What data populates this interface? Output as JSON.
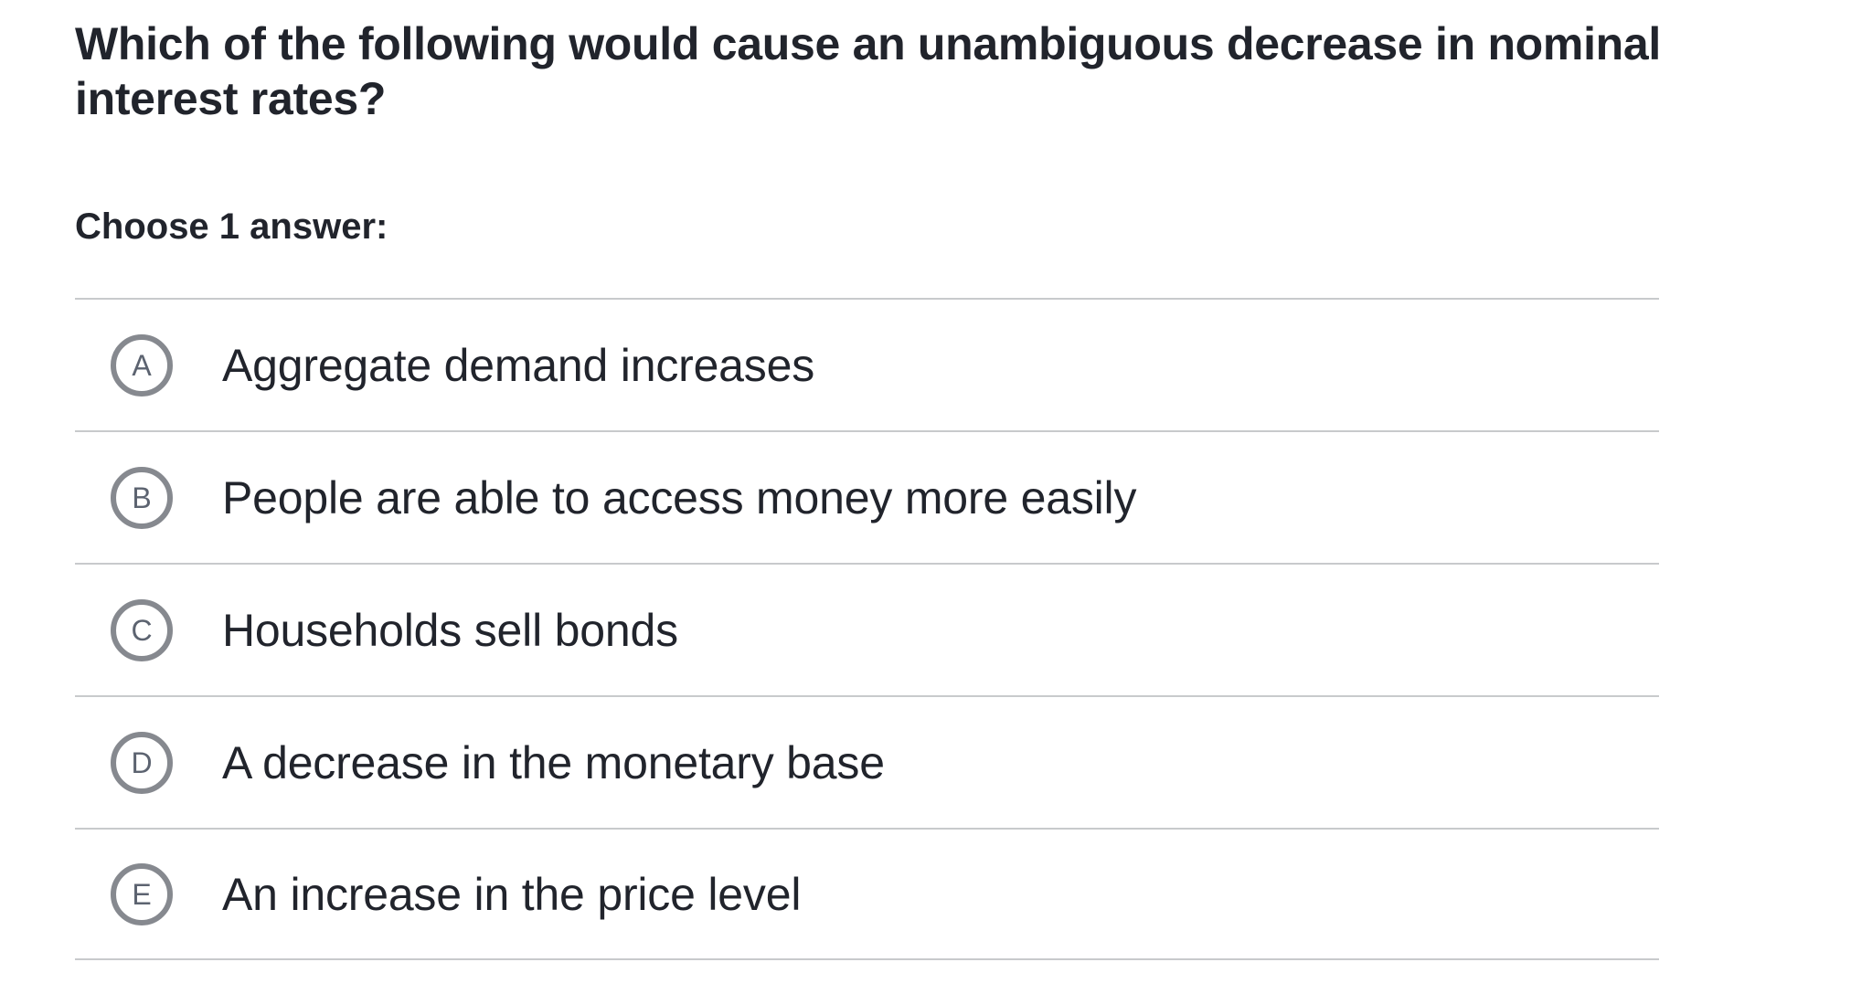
{
  "question": {
    "text": "Which of the following would cause an unambiguous decrease in nominal interest rates?",
    "prompt": "Choose 1 answer:"
  },
  "options": [
    {
      "letter": "A",
      "text": "Aggregate demand increases"
    },
    {
      "letter": "B",
      "text": "People are able to access money more easily"
    },
    {
      "letter": "C",
      "text": "Households sell bonds"
    },
    {
      "letter": "D",
      "text": "A decrease in the monetary base"
    },
    {
      "letter": "E",
      "text": "An increase in the price level"
    }
  ],
  "colors": {
    "text": "#21242c",
    "divider": "#c8cacc",
    "radio_ring": "#86898f",
    "radio_letter": "#5c6370"
  }
}
